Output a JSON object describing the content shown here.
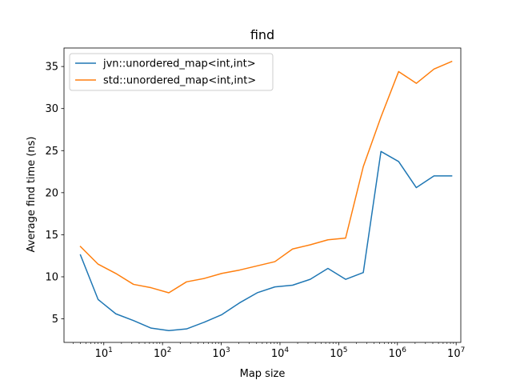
{
  "chart_data": {
    "type": "line",
    "title": "find",
    "xlabel": "Map size",
    "ylabel": "Average find time (ns)",
    "xscale": "log",
    "xlim": [
      2.1,
      12000000
    ],
    "ylim": [
      2.2,
      37.2
    ],
    "xticks": [
      {
        "value": 10,
        "base": "10",
        "exp": "1"
      },
      {
        "value": 100,
        "base": "10",
        "exp": "2"
      },
      {
        "value": 1000,
        "base": "10",
        "exp": "3"
      },
      {
        "value": 10000,
        "base": "10",
        "exp": "4"
      },
      {
        "value": 100000,
        "base": "10",
        "exp": "5"
      },
      {
        "value": 1000000,
        "base": "10",
        "exp": "6"
      },
      {
        "value": 10000000,
        "base": "10",
        "exp": "7"
      }
    ],
    "yticks": [
      "5",
      "10",
      "15",
      "20",
      "25",
      "30",
      "35"
    ],
    "grid": false,
    "legend_position": "top-left",
    "x": [
      4,
      8,
      16,
      32,
      64,
      128,
      256,
      512,
      1024,
      2048,
      4096,
      8192,
      16384,
      32768,
      65536,
      131072,
      262144,
      524288,
      1048576,
      2097152,
      4194304,
      8388608
    ],
    "series": [
      {
        "name": "jvn::unordered_map<int,int>",
        "color": "#1f77b4",
        "values": [
          12.6,
          7.3,
          5.6,
          4.8,
          3.9,
          3.6,
          3.8,
          4.6,
          5.5,
          6.9,
          8.1,
          8.8,
          9.0,
          9.7,
          11.0,
          9.7,
          10.5,
          24.9,
          23.7,
          20.6,
          22.0,
          22.0
        ]
      },
      {
        "name": "std::unordered_map<int,int>",
        "color": "#ff7f0e",
        "values": [
          13.6,
          11.5,
          10.4,
          9.1,
          8.7,
          8.1,
          9.4,
          9.8,
          10.4,
          10.8,
          11.3,
          11.8,
          13.3,
          13.8,
          14.4,
          14.6,
          23.1,
          29.0,
          34.4,
          33.0,
          34.7,
          35.6
        ]
      }
    ]
  }
}
